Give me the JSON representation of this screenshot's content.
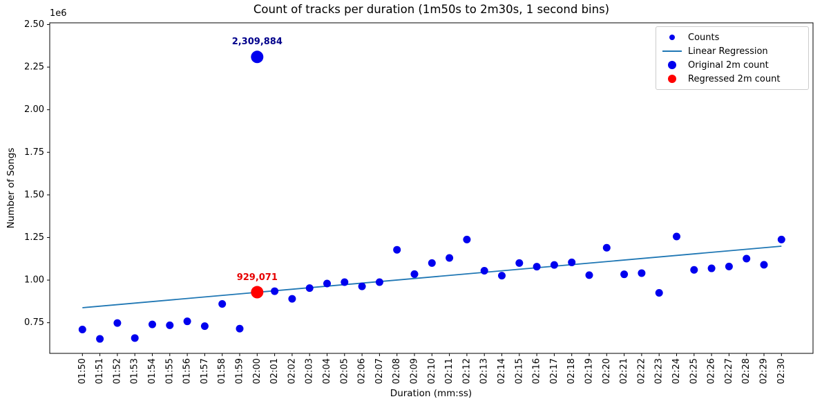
{
  "chart_data": {
    "type": "scatter",
    "title": "Count of tracks per duration (1m50s to 2m30s, 1 second bins)",
    "xlabel": "Duration (mm:ss)",
    "ylabel": "Number of Songs",
    "y_scale_offset_label": "1e6",
    "grid": false,
    "categories": [
      "01:50",
      "01:51",
      "01:52",
      "01:53",
      "01:54",
      "01:55",
      "01:56",
      "01:57",
      "01:58",
      "01:59",
      "02:00",
      "02:01",
      "02:02",
      "02:03",
      "02:04",
      "02:05",
      "02:06",
      "02:07",
      "02:08",
      "02:09",
      "02:10",
      "02:11",
      "02:12",
      "02:13",
      "02:14",
      "02:15",
      "02:16",
      "02:17",
      "02:18",
      "02:19",
      "02:20",
      "02:21",
      "02:22",
      "02:23",
      "02:24",
      "02:25",
      "02:26",
      "02:27",
      "02:28",
      "02:29",
      "02:30"
    ],
    "series": [
      {
        "name": "Counts",
        "type": "scatter",
        "color": "#0000ee",
        "values": [
          710000,
          655000,
          748000,
          660000,
          740000,
          735000,
          758000,
          730000,
          860000,
          715000,
          2309884,
          935000,
          890000,
          953000,
          980000,
          988000,
          963000,
          988000,
          1178000,
          1035000,
          1100000,
          1130000,
          1238000,
          1055000,
          1026000,
          1100000,
          1079000,
          1089000,
          1104000,
          1029000,
          1190000,
          1034000,
          1041000,
          925000,
          1256000,
          1060000,
          1069000,
          1080000,
          1126000,
          1090000,
          1238000
        ]
      },
      {
        "name": "Linear Regression",
        "type": "line",
        "color": "#1f77b4",
        "x_start": "01:50",
        "y_start": 838000,
        "x_end": "02:30",
        "y_end": 1199000
      },
      {
        "name": "Original 2m count",
        "type": "scatter-highlight",
        "color": "#0000ee",
        "x": "02:00",
        "value": 2309884
      },
      {
        "name": "Regressed 2m count",
        "type": "scatter-highlight",
        "color": "#ff0000",
        "x": "02:00",
        "value": 929071
      }
    ],
    "annotations": [
      {
        "text": "2,309,884",
        "color": "#00008b",
        "x": "02:00",
        "y": 2309884
      },
      {
        "text": "929,071",
        "color": "#e60000",
        "x": "02:00",
        "y": 929071
      }
    ],
    "y_tick_values": [
      750000,
      1000000,
      1250000,
      1500000,
      1750000,
      2000000,
      2250000,
      2500000
    ],
    "y_tick_labels": [
      "0.75",
      "1.00",
      "1.25",
      "1.50",
      "1.75",
      "2.00",
      "2.25",
      "2.50"
    ],
    "ylim": [
      570000,
      2510000
    ],
    "legend": {
      "position": "upper right",
      "entries": [
        {
          "label": "Counts",
          "marker": "small-dot",
          "color": "#0000ee"
        },
        {
          "label": "Linear Regression",
          "marker": "line",
          "color": "#1f77b4"
        },
        {
          "label": "Original 2m count",
          "marker": "large-dot",
          "color": "#0000ee"
        },
        {
          "label": "Regressed 2m count",
          "marker": "large-dot",
          "color": "#ff0000"
        }
      ]
    }
  }
}
